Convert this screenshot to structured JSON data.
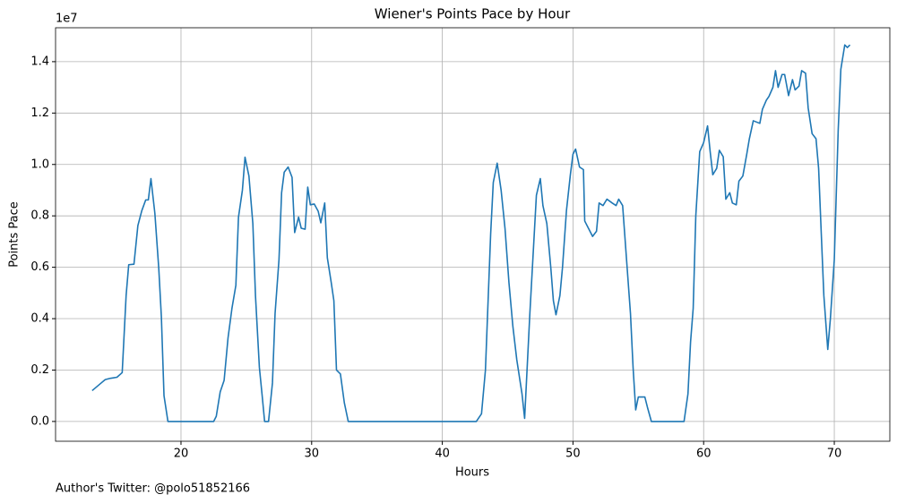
{
  "chart_data": {
    "type": "line",
    "title": "Wiener's Points Pace by Hour",
    "x_label": "Hours",
    "y_label": "Points Pace",
    "y_offset_label": "1e7",
    "footnote": "Author's Twitter: @polo51852166",
    "x": [
      13.2,
      13.9,
      14.2,
      14.6,
      15.1,
      15.5,
      15.8,
      16.0,
      16.4,
      16.7,
      17.0,
      17.3,
      17.5,
      17.7,
      18.0,
      18.3,
      18.5,
      18.7,
      19.0,
      22.5,
      22.7,
      23.0,
      23.3,
      23.6,
      23.9,
      24.2,
      24.4,
      24.7,
      24.9,
      25.2,
      25.5,
      25.7,
      26.0,
      26.2,
      26.4,
      26.7,
      27.0,
      27.2,
      27.5,
      27.7,
      27.9,
      28.2,
      28.5,
      28.7,
      29.0,
      29.2,
      29.5,
      29.7,
      29.9,
      30.2,
      30.5,
      30.7,
      31.0,
      31.2,
      31.5,
      31.7,
      31.9,
      32.2,
      32.5,
      32.8,
      42.6,
      43.0,
      43.3,
      43.7,
      43.9,
      44.2,
      44.5,
      44.8,
      45.1,
      45.4,
      45.7,
      46.1,
      46.3,
      46.7,
      47.2,
      47.5,
      47.7,
      48.0,
      48.3,
      48.5,
      48.7,
      49.0,
      49.2,
      49.5,
      49.8,
      50.0,
      50.2,
      50.5,
      50.8,
      50.9,
      51.2,
      51.5,
      51.8,
      52.0,
      52.3,
      52.6,
      53.0,
      53.3,
      53.5,
      53.8,
      54.1,
      54.4,
      54.6,
      54.8,
      55.0,
      55.5,
      55.7,
      56.0,
      58.5,
      58.8,
      59.0,
      59.2,
      59.4,
      59.7,
      60.0,
      60.3,
      60.5,
      60.7,
      61.0,
      61.2,
      61.5,
      61.7,
      62.0,
      62.2,
      62.5,
      62.7,
      63.0,
      63.3,
      63.5,
      63.8,
      64.3,
      64.5,
      64.8,
      65.0,
      65.3,
      65.5,
      65.7,
      66.0,
      66.2,
      66.5,
      66.8,
      67.0,
      67.3,
      67.5,
      67.8,
      68.0,
      68.3,
      68.6,
      68.8,
      69.0,
      69.2,
      69.5,
      69.7,
      70.0,
      70.3,
      70.5,
      70.8,
      71.0,
      71.2
    ],
    "series": [
      {
        "color": "#1f77b4",
        "values": [
          0.12,
          0.15,
          0.163,
          0.168,
          0.172,
          0.19,
          0.49,
          0.61,
          0.612,
          0.762,
          0.82,
          0.862,
          0.862,
          0.945,
          0.81,
          0.595,
          0.405,
          0.1,
          0,
          0,
          0.02,
          0.115,
          0.16,
          0.325,
          0.44,
          0.53,
          0.795,
          0.9,
          1.028,
          0.955,
          0.77,
          0.49,
          0.21,
          0.107,
          0,
          0,
          0.15,
          0.42,
          0.63,
          0.89,
          0.97,
          0.99,
          0.95,
          0.735,
          0.795,
          0.752,
          0.748,
          0.912,
          0.843,
          0.846,
          0.818,
          0.773,
          0.85,
          0.637,
          0.54,
          0.47,
          0.2,
          0.185,
          0.073,
          0,
          0,
          0.03,
          0.2,
          0.73,
          0.93,
          1.005,
          0.9,
          0.75,
          0.54,
          0.37,
          0.24,
          0.107,
          0.012,
          0.42,
          0.88,
          0.945,
          0.84,
          0.77,
          0.6,
          0.47,
          0.415,
          0.49,
          0.6,
          0.82,
          0.96,
          1.04,
          1.06,
          0.99,
          0.98,
          0.78,
          0.75,
          0.72,
          0.74,
          0.85,
          0.84,
          0.865,
          0.85,
          0.84,
          0.865,
          0.84,
          0.63,
          0.42,
          0.21,
          0.045,
          0.095,
          0.095,
          0.055,
          0,
          0,
          0.107,
          0.31,
          0.44,
          0.8,
          1.05,
          1.085,
          1.15,
          1.05,
          0.96,
          0.985,
          1.055,
          1.03,
          0.865,
          0.89,
          0.85,
          0.843,
          0.935,
          0.955,
          1.04,
          1.1,
          1.17,
          1.16,
          1.215,
          1.25,
          1.265,
          1.3,
          1.365,
          1.3,
          1.35,
          1.35,
          1.268,
          1.33,
          1.29,
          1.305,
          1.365,
          1.355,
          1.22,
          1.12,
          1.1,
          0.985,
          0.735,
          0.49,
          0.28,
          0.4,
          0.63,
          1.135,
          1.37,
          1.465,
          1.455,
          1.465
        ]
      }
    ],
    "xlim": [
      10.4,
      74.25
    ],
    "ylim": [
      -0.077,
      1.532
    ],
    "xticks": [
      20,
      30,
      40,
      50,
      60,
      70
    ],
    "yticks": [
      {
        "value": 0,
        "label": "0.0"
      },
      {
        "value": 0.2,
        "label": "0.2"
      },
      {
        "value": 0.4,
        "label": "0.4"
      },
      {
        "value": 0.6,
        "label": "0.6"
      },
      {
        "value": 0.8,
        "label": "0.8"
      },
      {
        "value": 1.0,
        "label": "1.0"
      },
      {
        "value": 1.2,
        "label": "1.2"
      },
      {
        "value": 1.4,
        "label": "1.4"
      }
    ],
    "grid": true
  }
}
